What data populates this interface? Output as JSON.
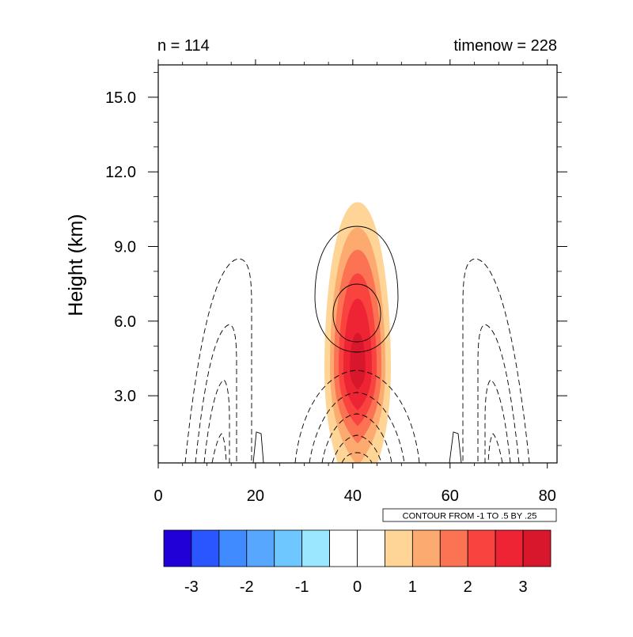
{
  "chart_data": {
    "type": "contour",
    "title_left": "n = 114",
    "title_right": "timenow = 228",
    "ylabel": "Height (km)",
    "xlabel": "",
    "xlim": [
      0,
      82
    ],
    "ylim": [
      0.3,
      16.3
    ],
    "x_ticks": [
      "0",
      "20",
      "40",
      "60",
      "80"
    ],
    "x_tick_values": [
      0,
      20,
      40,
      60,
      80
    ],
    "y_ticks": [
      "3.0",
      "6.0",
      "9.0",
      "12.0",
      "15.0"
    ],
    "y_tick_values": [
      3,
      6,
      9,
      12,
      15
    ],
    "contour_info": "CONTOUR FROM -1 TO .5 BY .25",
    "filled_field": {
      "center_x": 41,
      "center_y": 4.1,
      "max": 3.4,
      "colormap": "blue-white-red"
    },
    "colorbar": {
      "colors": [
        "#2100d8",
        "#2a56ff",
        "#3f8bff",
        "#58a7ff",
        "#6ec8ff",
        "#9ae8ff",
        "#ffffff",
        "#ffffff",
        "#fed597",
        "#fdaa70",
        "#fb7352",
        "#f8433e",
        "#ee2434",
        "#d8172c"
      ],
      "tick_labels": [
        "-3",
        "-2",
        "-1",
        "0",
        "1",
        "2",
        "3"
      ]
    }
  }
}
